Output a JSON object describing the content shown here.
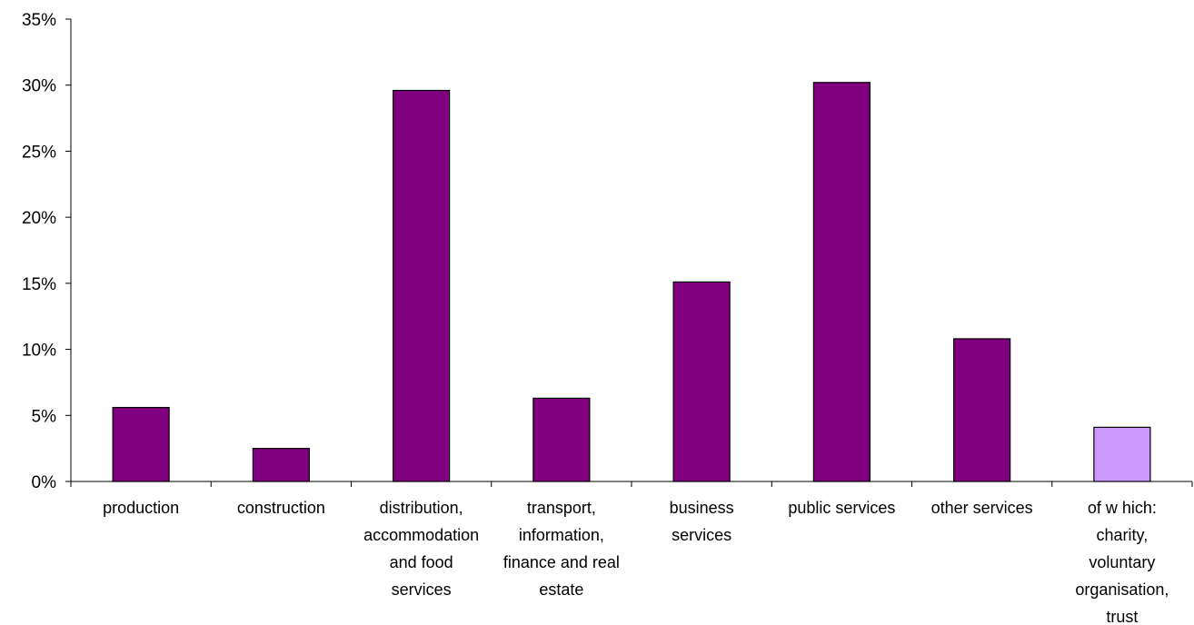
{
  "chart_data": {
    "type": "bar",
    "categories": [
      [
        "production"
      ],
      [
        "construction"
      ],
      [
        "distribution,",
        "accommodation",
        "and food",
        "services"
      ],
      [
        "transport,",
        "information,",
        "finance and real",
        "estate"
      ],
      [
        "business",
        "services"
      ],
      [
        "public services"
      ],
      [
        "other services"
      ],
      [
        "of w hich:",
        "charity,",
        "voluntary",
        "organisation,",
        "trust"
      ]
    ],
    "values": [
      5.6,
      2.5,
      29.6,
      6.3,
      15.1,
      30.2,
      10.8,
      4.1
    ],
    "ylim": [
      0,
      35
    ],
    "yticks": [
      0,
      5,
      10,
      15,
      20,
      25,
      30,
      35
    ],
    "ytick_labels": [
      "0%",
      "5%",
      "10%",
      "15%",
      "20%",
      "25%",
      "30%",
      "35%"
    ],
    "colors": [
      "#800080",
      "#800080",
      "#800080",
      "#800080",
      "#800080",
      "#800080",
      "#800080",
      "#CC99FF"
    ],
    "grid": false,
    "legend": false
  }
}
